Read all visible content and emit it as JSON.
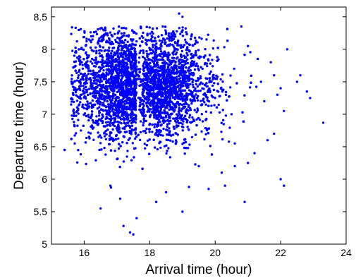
{
  "chart_data": {
    "type": "scatter",
    "title": "",
    "xlabel": "Arrival time (hour)",
    "ylabel": "Departure time (hour)",
    "xlim": [
      15,
      24
    ],
    "ylim": [
      5,
      8.65
    ],
    "xticks": [
      16,
      18,
      20,
      22,
      24
    ],
    "xtick_labels": [
      "16",
      "18",
      "20",
      "22",
      "24"
    ],
    "yticks": [
      5,
      5.5,
      6,
      6.5,
      7,
      7.5,
      8,
      8.5
    ],
    "ytick_labels": [
      "5",
      "5.5",
      "6",
      "6.5",
      "7",
      "7.5",
      "8",
      "8.5"
    ],
    "grid": false,
    "marker_color": "#0000ff",
    "series": [
      {
        "points_note_cluster": "dense cluster centered near (17.6, 7.5)",
        "cluster": {
          "x_mean": 17.6,
          "x_sd": 0.95,
          "y_mean": 7.45,
          "y_sd": 0.42,
          "count": 4200
        },
        "outliers": [
          [
            15.4,
            6.45
          ],
          [
            15.7,
            7.9
          ],
          [
            15.6,
            7.15
          ],
          [
            15.9,
            6.75
          ],
          [
            16.5,
            5.55
          ],
          [
            16.8,
            5.9
          ],
          [
            17.1,
            5.7
          ],
          [
            17.2,
            5.28
          ],
          [
            17.4,
            5.18
          ],
          [
            17.5,
            5.15
          ],
          [
            17.6,
            5.4
          ],
          [
            18.2,
            5.65
          ],
          [
            18.5,
            5.8
          ],
          [
            19.0,
            5.5
          ],
          [
            19.2,
            5.88
          ],
          [
            19.8,
            5.85
          ],
          [
            20.3,
            5.9
          ],
          [
            20.9,
            5.65
          ],
          [
            20.6,
            6.2
          ],
          [
            21.0,
            6.25
          ],
          [
            21.2,
            6.4
          ],
          [
            21.6,
            6.6
          ],
          [
            21.8,
            6.7
          ],
          [
            22.0,
            6.0
          ],
          [
            22.1,
            5.9
          ],
          [
            22.1,
            7.05
          ],
          [
            21.9,
            7.3
          ],
          [
            21.5,
            7.2
          ],
          [
            21.8,
            7.6
          ],
          [
            22.0,
            7.4
          ],
          [
            22.2,
            8.0
          ],
          [
            22.5,
            7.5
          ],
          [
            22.6,
            7.6
          ],
          [
            22.8,
            7.35
          ],
          [
            22.9,
            7.25
          ],
          [
            23.3,
            6.87
          ],
          [
            21.7,
            7.8
          ],
          [
            21.3,
            7.85
          ],
          [
            21.0,
            8.05
          ],
          [
            20.8,
            8.35
          ],
          [
            21.4,
            7.5
          ],
          [
            20.5,
            7.0
          ],
          [
            20.6,
            6.55
          ],
          [
            20.2,
            6.1
          ],
          [
            19.5,
            6.2
          ],
          [
            18.9,
            8.55
          ],
          [
            19.0,
            8.5
          ],
          [
            18.4,
            8.35
          ]
        ]
      }
    ]
  }
}
